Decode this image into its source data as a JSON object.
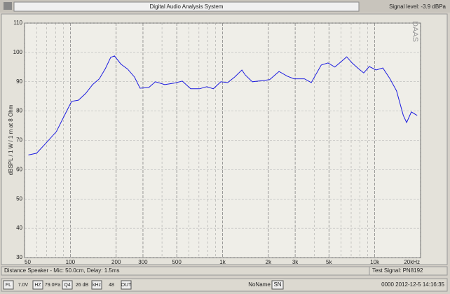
{
  "window": {
    "title": "Digital Audio Analysis System",
    "signal_level": "Signal level: -3.9 dBPa"
  },
  "chart_data": {
    "type": "line",
    "y_label": "dBSPL / 1 W / 1 m at 8 Ohm",
    "watermark": "DAAS",
    "x": [
      53,
      60,
      69,
      81,
      94,
      102,
      113,
      126,
      140,
      155,
      170,
      184,
      195,
      215,
      238,
      264,
      287,
      327,
      362,
      417,
      480,
      544,
      617,
      706,
      787,
      870,
      975,
      1080,
      1200,
      1340,
      1410,
      1570,
      1840,
      2040,
      2350,
      2660,
      2950,
      3450,
      3830,
      4450,
      4930,
      5470,
      5880,
      6540,
      7100,
      7800,
      8460,
      9200,
      10200,
      11300,
      12550,
      13900,
      15400,
      16200,
      17400,
      19000
    ],
    "values": [
      65,
      65.6,
      69,
      73,
      79.7,
      83.3,
      83.7,
      86,
      89,
      91,
      94.5,
      98.3,
      98.8,
      96,
      94.3,
      91.6,
      87.8,
      88,
      90,
      89,
      89.5,
      90.2,
      87.6,
      87.6,
      88.3,
      87.6,
      90,
      89.7,
      91.6,
      94,
      92.3,
      90,
      90.4,
      90.7,
      93.5,
      91.9,
      91,
      91,
      89.7,
      95.7,
      96.4,
      95,
      96.4,
      98.5,
      96.4,
      94.5,
      93,
      95.2,
      94,
      94.7,
      91.1,
      86.9,
      78.5,
      76.1,
      79.7,
      78.5
    ],
    "color": "#1c1ce0",
    "log_x": true,
    "grid": true,
    "xlim": [
      50,
      20000
    ],
    "xticks": [
      50,
      100,
      200,
      300,
      500,
      {
        "value": 1000,
        "label": "1k"
      },
      {
        "value": 2000,
        "label": "2k"
      },
      {
        "value": 3000,
        "label": "3k"
      },
      {
        "value": 5000,
        "label": "5k"
      },
      {
        "value": 10000,
        "label": "10k"
      },
      {
        "value": 20000,
        "label": "20kHz"
      }
    ],
    "xminorticks": [
      60,
      70,
      80,
      90,
      400,
      600,
      700,
      800,
      900,
      4000,
      6000,
      7000,
      8000,
      9000
    ],
    "ylim": [
      30,
      110
    ],
    "yticks": [
      30,
      40,
      50,
      60,
      70,
      80,
      90,
      100,
      110
    ]
  },
  "info": {
    "left": "Distance Speaker - Mic: 50.0cm, Delay: 1.5ms",
    "right": "Test Signal: PN8192"
  },
  "status_bar": [
    "FL",
    "7.0V",
    "HZ",
    "79.0Pa",
    "Q4",
    "26 dB",
    "kHz",
    "48",
    "OUT"
  ],
  "status_name": "NoName",
  "status_sn": "SN",
  "status_time": "0000 2012-12-5 14:16:35"
}
